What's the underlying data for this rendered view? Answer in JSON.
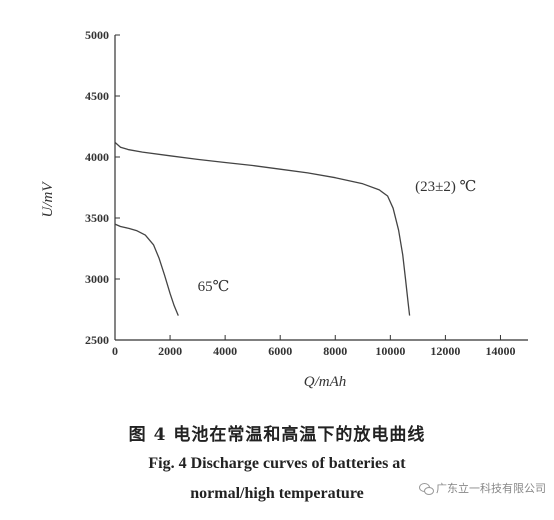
{
  "chart_data": {
    "type": "line",
    "xlabel": "Q/mAh",
    "ylabel": "U/mV",
    "xlim": [
      0,
      15000
    ],
    "ylim": [
      2500,
      5000
    ],
    "xticks": [
      0,
      2000,
      4000,
      6000,
      8000,
      10000,
      12000,
      14000
    ],
    "yticks": [
      2500,
      3000,
      3500,
      4000,
      4500,
      5000
    ],
    "grid": false,
    "legend": "none",
    "series": [
      {
        "name": "(23±2) ℃",
        "x": [
          0,
          200,
          500,
          1000,
          2000,
          3000,
          4000,
          5000,
          6000,
          7000,
          8000,
          9000,
          9600,
          9900,
          10100,
          10300,
          10450,
          10550,
          10650,
          10700
        ],
        "y": [
          4120,
          4080,
          4060,
          4040,
          4010,
          3980,
          3955,
          3930,
          3900,
          3870,
          3830,
          3780,
          3730,
          3680,
          3580,
          3400,
          3200,
          3000,
          2800,
          2700
        ]
      },
      {
        "name": "65℃",
        "x": [
          0,
          200,
          500,
          800,
          1100,
          1400,
          1600,
          1800,
          2000,
          2150,
          2300
        ],
        "y": [
          3450,
          3430,
          3415,
          3395,
          3360,
          3280,
          3170,
          3030,
          2880,
          2780,
          2700
        ]
      }
    ],
    "annotations": [
      {
        "text": "(23±2) ℃",
        "x": 10900,
        "y": 3720
      },
      {
        "text": "65℃",
        "x": 3000,
        "y": 2900
      }
    ]
  },
  "caption": {
    "cn": "图 4   电池在常温和高温下的放电曲线",
    "en_line1": "Fig. 4    Discharge curves of batteries at",
    "en_line2": "normal/high temperature"
  },
  "watermark": {
    "text": "广东立一科技有限公司",
    "icon": "wechat-icon"
  }
}
